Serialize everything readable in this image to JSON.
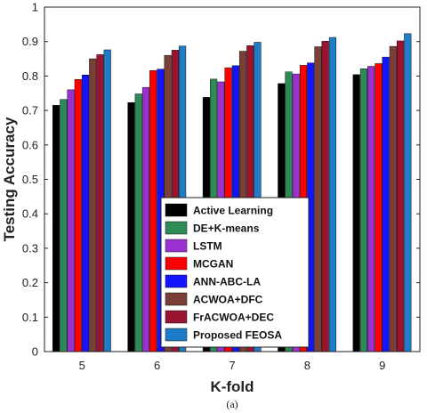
{
  "chart_data": {
    "type": "bar",
    "xlabel": "K-fold",
    "ylabel": "Testing Accuracy",
    "caption": "(a)",
    "categories": [
      "5",
      "6",
      "7",
      "8",
      "9"
    ],
    "ylim": [
      0,
      1
    ],
    "yticks": [
      "0",
      "0.1",
      "0.2",
      "0.3",
      "0.4",
      "0.5",
      "0.6",
      "0.7",
      "0.8",
      "0.9",
      "1"
    ],
    "grid": false,
    "legend_position": "bottom-center",
    "series": [
      {
        "name": "Active Learning",
        "color": "#000000",
        "values": [
          0.715,
          0.723,
          0.738,
          0.778,
          0.804
        ]
      },
      {
        "name": "DE+K-means",
        "color": "#2e8b57",
        "values": [
          0.732,
          0.748,
          0.791,
          0.812,
          0.821
        ]
      },
      {
        "name": "LSTM",
        "color": "#9b30d0",
        "values": [
          0.76,
          0.767,
          0.783,
          0.806,
          0.828
        ]
      },
      {
        "name": "MCGAN",
        "color": "#ff0000",
        "values": [
          0.79,
          0.816,
          0.824,
          0.831,
          0.836
        ]
      },
      {
        "name": "ANN-ABC-LA",
        "color": "#1414ff",
        "values": [
          0.803,
          0.82,
          0.83,
          0.838,
          0.855
        ]
      },
      {
        "name": "ACWOA+DFC",
        "color": "#7a4038",
        "values": [
          0.85,
          0.86,
          0.872,
          0.885,
          0.886
        ]
      },
      {
        "name": "FrACWOA+DEC",
        "color": "#9a1430",
        "values": [
          0.862,
          0.875,
          0.888,
          0.901,
          0.902
        ]
      },
      {
        "name": "Proposed FEOSA",
        "color": "#1e7cc8",
        "values": [
          0.876,
          0.887,
          0.898,
          0.912,
          0.923
        ]
      }
    ]
  }
}
